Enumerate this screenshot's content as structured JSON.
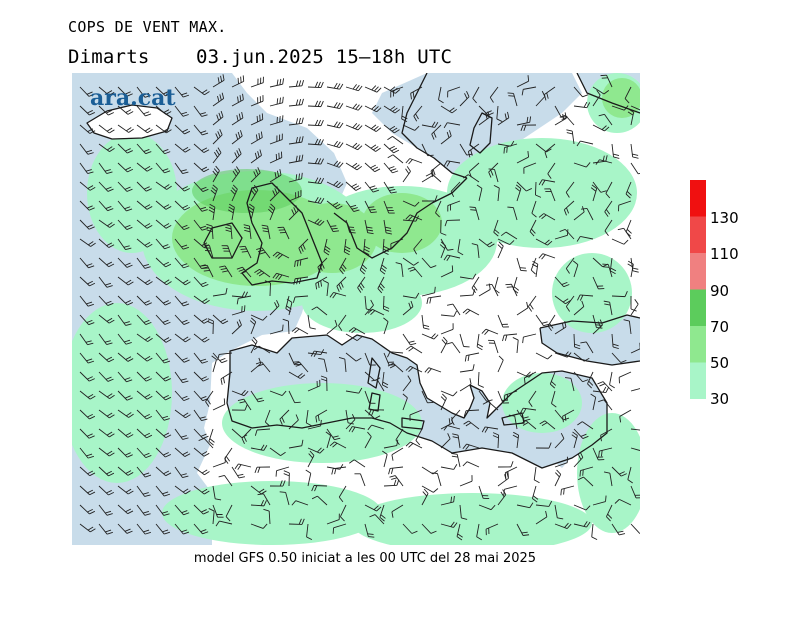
{
  "header": {
    "title": "COPS DE VENT MAX.",
    "day": "Dimarts",
    "date": "03.jun.2025",
    "hours": "15–18h",
    "tz": "UTC"
  },
  "logo": {
    "text": "ara.cat",
    "color": "#1a5e96"
  },
  "footer": {
    "text": "model GFS 0.50 iniciat a les 00 UTC del 28 mai 2025"
  },
  "legend": {
    "bands": [
      {
        "from": 30,
        "color": "#a8f5c8"
      },
      {
        "from": 50,
        "color": "#8fe88f"
      },
      {
        "from": 70,
        "color": "#5ccc5c"
      },
      {
        "from": 90,
        "color": "#f08080"
      },
      {
        "from": 110,
        "color": "#f04848"
      },
      {
        "from": 130,
        "color": "#f01010"
      }
    ],
    "labels": [
      "30",
      "50",
      "70",
      "90",
      "110",
      "130"
    ]
  },
  "map": {
    "sea_color": "#c8dcea",
    "land_color": "#ffffff",
    "coast_color": "#1a1a1a",
    "barb_color": "#222222"
  }
}
